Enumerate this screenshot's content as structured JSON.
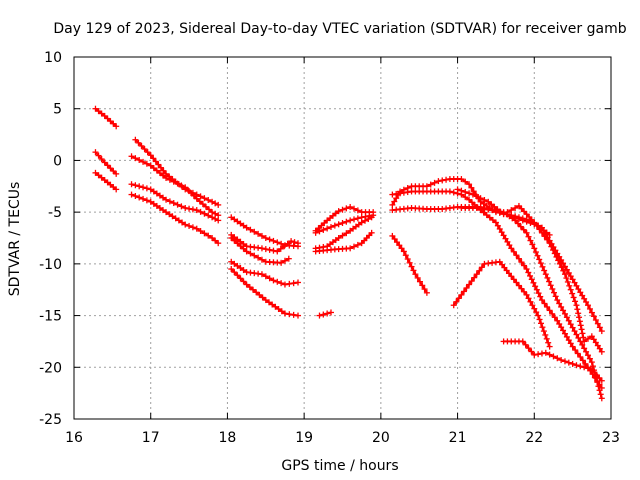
{
  "chart_data": {
    "type": "scatter",
    "title": "Day 129 of 2023, Sidereal Day-to-day VTEC variation (SDTVAR) for receiver gamb",
    "xlabel": "GPS time / hours",
    "ylabel": "SDTVAR / TECUs",
    "xlim": [
      16,
      23
    ],
    "ylim": [
      -25,
      10
    ],
    "xticks": [
      16,
      17,
      18,
      19,
      20,
      21,
      22,
      23
    ],
    "yticks": [
      -25,
      -20,
      -15,
      -10,
      -5,
      0,
      5,
      10
    ],
    "xtick_labels": [
      "16",
      "17",
      "18",
      "19",
      "20",
      "21",
      "22",
      "23"
    ],
    "ytick_labels": [
      "-25",
      "-20",
      "-15",
      "-10",
      "-5",
      "0",
      "5",
      "10"
    ],
    "grid": true,
    "marker": "+",
    "color": "#ff0000",
    "series": [
      {
        "name": "trace-1",
        "points": [
          [
            16.28,
            5.0
          ],
          [
            16.4,
            4.3
          ],
          [
            16.55,
            3.3
          ]
        ]
      },
      {
        "name": "trace-2",
        "points": [
          [
            16.28,
            0.8
          ],
          [
            16.4,
            -0.2
          ],
          [
            16.55,
            -1.3
          ]
        ]
      },
      {
        "name": "trace-3",
        "points": [
          [
            16.28,
            -1.2
          ],
          [
            16.4,
            -1.9
          ],
          [
            16.55,
            -2.8
          ]
        ]
      },
      {
        "name": "trace-4",
        "points": [
          [
            16.8,
            2.0
          ],
          [
            17.0,
            0.5
          ],
          [
            17.2,
            -1.3
          ],
          [
            17.45,
            -2.8
          ],
          [
            17.6,
            -3.3
          ],
          [
            17.8,
            -4.0
          ],
          [
            17.88,
            -4.3
          ]
        ]
      },
      {
        "name": "trace-5",
        "points": [
          [
            16.75,
            0.4
          ],
          [
            17.0,
            -0.5
          ],
          [
            17.2,
            -1.7
          ],
          [
            17.45,
            -2.6
          ],
          [
            17.6,
            -3.7
          ],
          [
            17.8,
            -5.0
          ],
          [
            17.88,
            -5.3
          ]
        ]
      },
      {
        "name": "trace-6",
        "points": [
          [
            16.75,
            -2.3
          ],
          [
            17.0,
            -2.8
          ],
          [
            17.2,
            -3.8
          ],
          [
            17.45,
            -4.6
          ],
          [
            17.6,
            -4.8
          ],
          [
            17.8,
            -5.5
          ],
          [
            17.88,
            -5.8
          ]
        ]
      },
      {
        "name": "trace-7",
        "points": [
          [
            16.75,
            -3.3
          ],
          [
            17.0,
            -4.0
          ],
          [
            17.2,
            -5.0
          ],
          [
            17.45,
            -6.2
          ],
          [
            17.6,
            -6.6
          ],
          [
            17.8,
            -7.5
          ],
          [
            17.88,
            -8.0
          ]
        ]
      },
      {
        "name": "trace-8",
        "points": [
          [
            18.05,
            -5.5
          ],
          [
            18.25,
            -6.5
          ],
          [
            18.5,
            -7.5
          ],
          [
            18.75,
            -8.2
          ],
          [
            18.92,
            -8.3
          ]
        ]
      },
      {
        "name": "trace-9",
        "points": [
          [
            18.05,
            -7.2
          ],
          [
            18.25,
            -8.3
          ],
          [
            18.45,
            -8.5
          ],
          [
            18.65,
            -8.8
          ],
          [
            18.83,
            -7.8
          ],
          [
            18.92,
            -8.0
          ]
        ]
      },
      {
        "name": "trace-10",
        "points": [
          [
            18.05,
            -7.5
          ],
          [
            18.25,
            -8.8
          ],
          [
            18.5,
            -9.8
          ],
          [
            18.7,
            -9.9
          ],
          [
            18.8,
            -9.5
          ]
        ]
      },
      {
        "name": "trace-11",
        "points": [
          [
            18.05,
            -9.8
          ],
          [
            18.25,
            -10.8
          ],
          [
            18.45,
            -11.0
          ],
          [
            18.6,
            -11.6
          ],
          [
            18.75,
            -12.0
          ],
          [
            18.92,
            -11.8
          ]
        ]
      },
      {
        "name": "trace-12",
        "points": [
          [
            18.05,
            -10.5
          ],
          [
            18.25,
            -12.0
          ],
          [
            18.5,
            -13.5
          ],
          [
            18.75,
            -14.8
          ],
          [
            18.92,
            -15.0
          ]
        ]
      },
      {
        "name": "trace-13",
        "points": [
          [
            19.2,
            -15.0
          ],
          [
            19.35,
            -14.7
          ]
        ]
      },
      {
        "name": "trace-14",
        "points": [
          [
            19.15,
            -6.8
          ],
          [
            19.3,
            -5.8
          ],
          [
            19.45,
            -4.9
          ],
          [
            19.6,
            -4.5
          ],
          [
            19.75,
            -5.0
          ],
          [
            19.9,
            -5.0
          ]
        ]
      },
      {
        "name": "trace-15",
        "points": [
          [
            19.15,
            -7.0
          ],
          [
            19.4,
            -6.3
          ],
          [
            19.6,
            -5.8
          ],
          [
            19.75,
            -5.5
          ],
          [
            19.9,
            -5.3
          ]
        ]
      },
      {
        "name": "trace-16",
        "points": [
          [
            19.15,
            -8.5
          ],
          [
            19.3,
            -8.3
          ],
          [
            19.45,
            -7.5
          ],
          [
            19.6,
            -6.8
          ],
          [
            19.75,
            -6.0
          ],
          [
            19.88,
            -5.5
          ]
        ]
      },
      {
        "name": "trace-17",
        "points": [
          [
            19.15,
            -8.8
          ],
          [
            19.4,
            -8.6
          ],
          [
            19.6,
            -8.5
          ],
          [
            19.75,
            -8.0
          ],
          [
            19.88,
            -7.0
          ]
        ]
      },
      {
        "name": "trace-18",
        "points": [
          [
            20.15,
            -7.3
          ],
          [
            20.3,
            -8.8
          ],
          [
            20.45,
            -11.0
          ],
          [
            20.6,
            -12.8
          ]
        ]
      },
      {
        "name": "trace-19",
        "points": [
          [
            20.15,
            -4.3
          ],
          [
            20.25,
            -3.0
          ],
          [
            20.4,
            -2.5
          ],
          [
            20.6,
            -2.5
          ],
          [
            20.75,
            -2.0
          ],
          [
            20.9,
            -1.8
          ],
          [
            21.05,
            -1.8
          ],
          [
            21.15,
            -2.3
          ],
          [
            21.3,
            -4.0
          ],
          [
            21.5,
            -5.0
          ],
          [
            21.7,
            -5.3
          ],
          [
            21.9,
            -5.7
          ],
          [
            22.1,
            -6.5
          ],
          [
            22.3,
            -9.0
          ],
          [
            22.5,
            -11.5
          ],
          [
            22.7,
            -14.0
          ],
          [
            22.88,
            -16.5
          ]
        ]
      },
      {
        "name": "trace-20",
        "points": [
          [
            20.15,
            -3.3
          ],
          [
            20.4,
            -3.0
          ],
          [
            20.6,
            -3.0
          ],
          [
            20.75,
            -3.0
          ],
          [
            20.9,
            -3.0
          ],
          [
            21.05,
            -3.3
          ],
          [
            21.15,
            -3.8
          ],
          [
            21.3,
            -4.8
          ],
          [
            21.5,
            -6.0
          ],
          [
            21.7,
            -8.5
          ],
          [
            21.9,
            -10.5
          ],
          [
            22.1,
            -13.5
          ],
          [
            22.3,
            -15.5
          ],
          [
            22.5,
            -18.0
          ],
          [
            22.7,
            -20.0
          ],
          [
            22.88,
            -22.0
          ]
        ]
      },
      {
        "name": "trace-21",
        "points": [
          [
            20.15,
            -4.8
          ],
          [
            20.4,
            -4.6
          ],
          [
            20.6,
            -4.7
          ],
          [
            20.8,
            -4.7
          ],
          [
            21.0,
            -4.5
          ],
          [
            21.15,
            -4.5
          ],
          [
            21.3,
            -4.5
          ],
          [
            21.45,
            -4.8
          ],
          [
            21.6,
            -5.0
          ],
          [
            21.75,
            -5.8
          ],
          [
            21.9,
            -7.0
          ],
          [
            22.0,
            -8.5
          ],
          [
            22.15,
            -11.0
          ],
          [
            22.3,
            -13.5
          ],
          [
            22.45,
            -15.5
          ],
          [
            22.6,
            -17.5
          ],
          [
            22.75,
            -19.5
          ],
          [
            22.88,
            -23.0
          ]
        ]
      },
      {
        "name": "trace-22",
        "points": [
          [
            20.95,
            -14.0
          ],
          [
            21.15,
            -12.0
          ],
          [
            21.35,
            -10.0
          ],
          [
            21.55,
            -9.8
          ],
          [
            21.7,
            -11.2
          ],
          [
            21.9,
            -13.0
          ],
          [
            22.05,
            -15.0
          ],
          [
            22.2,
            -18.0
          ]
        ]
      },
      {
        "name": "trace-23",
        "points": [
          [
            21.6,
            -17.5
          ],
          [
            21.85,
            -17.5
          ],
          [
            22.0,
            -18.8
          ],
          [
            22.15,
            -18.6
          ],
          [
            22.35,
            -19.3
          ],
          [
            22.55,
            -19.8
          ],
          [
            22.75,
            -20.2
          ],
          [
            22.88,
            -21.3
          ]
        ]
      },
      {
        "name": "trace-24",
        "points": [
          [
            21.0,
            -2.8
          ],
          [
            21.2,
            -3.3
          ],
          [
            21.4,
            -4.0
          ],
          [
            21.6,
            -5.2
          ],
          [
            21.8,
            -4.4
          ],
          [
            22.0,
            -6.0
          ],
          [
            22.2,
            -8.0
          ],
          [
            22.4,
            -11.0
          ],
          [
            22.55,
            -14.0
          ],
          [
            22.65,
            -17.5
          ],
          [
            22.75,
            -17.0
          ],
          [
            22.88,
            -18.5
          ]
        ]
      },
      {
        "name": "trace-25",
        "points": [
          [
            21.05,
            -4.6
          ],
          [
            21.25,
            -4.6
          ],
          [
            21.45,
            -4.8
          ],
          [
            21.65,
            -5.2
          ],
          [
            21.85,
            -5.8
          ],
          [
            22.05,
            -6.3
          ],
          [
            22.2,
            -7.2
          ]
        ]
      }
    ]
  }
}
